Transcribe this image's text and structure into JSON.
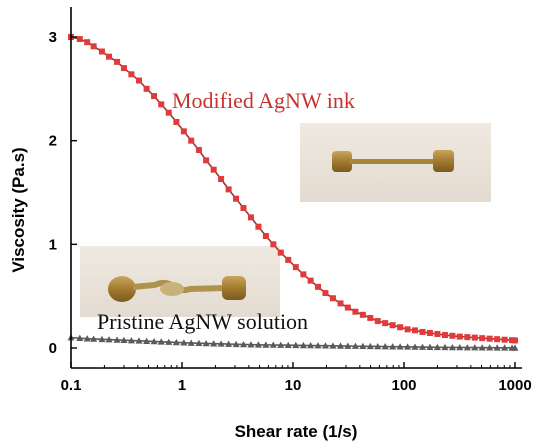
{
  "chart_data": {
    "type": "line",
    "xscale": "log",
    "xlim": [
      0.1,
      1000
    ],
    "ylim": [
      -0.2,
      3.3
    ],
    "xlabel": "Shear rate (1/s)",
    "ylabel": "Viscosity (Pa.s)",
    "xticks": [
      {
        "value": 0.1,
        "label": "0.1"
      },
      {
        "value": 1,
        "label": "1"
      },
      {
        "value": 10,
        "label": "10"
      },
      {
        "value": 100,
        "label": "100"
      },
      {
        "value": 1000,
        "label": "1000"
      }
    ],
    "yticks": [
      {
        "value": 0,
        "label": "0"
      },
      {
        "value": 1,
        "label": "1"
      },
      {
        "value": 2,
        "label": "2"
      },
      {
        "value": 3,
        "label": "3"
      }
    ],
    "grid": false,
    "series": [
      {
        "name": "Modified AgNW ink",
        "color": "#e03a3a",
        "line_color": "#8b3a3a",
        "marker": "square",
        "x": [
          0.1,
          0.12,
          0.14,
          0.16,
          0.19,
          0.22,
          0.26,
          0.3,
          0.35,
          0.41,
          0.48,
          0.56,
          0.65,
          0.76,
          0.89,
          1.04,
          1.21,
          1.42,
          1.65,
          1.93,
          2.25,
          2.63,
          3.07,
          3.58,
          4.18,
          4.88,
          5.7,
          6.65,
          7.76,
          9.06,
          10.6,
          12.4,
          14.4,
          16.8,
          19.6,
          22.9,
          26.8,
          31.2,
          36.5,
          42.6,
          49.7,
          58.0,
          67.7,
          79.0,
          92.3,
          107.7,
          125.7,
          146.8,
          171.3,
          200,
          234,
          273,
          318,
          372,
          434,
          506,
          591,
          690,
          806,
          940,
          1000
        ],
        "y": [
          3.0,
          2.98,
          2.95,
          2.91,
          2.86,
          2.81,
          2.76,
          2.7,
          2.64,
          2.58,
          2.5,
          2.43,
          2.35,
          2.27,
          2.18,
          2.09,
          2.0,
          1.91,
          1.81,
          1.72,
          1.63,
          1.53,
          1.44,
          1.35,
          1.26,
          1.17,
          1.08,
          1.0,
          0.92,
          0.85,
          0.78,
          0.71,
          0.65,
          0.59,
          0.53,
          0.48,
          0.43,
          0.39,
          0.35,
          0.32,
          0.29,
          0.26,
          0.24,
          0.22,
          0.2,
          0.18,
          0.17,
          0.155,
          0.145,
          0.135,
          0.125,
          0.118,
          0.11,
          0.105,
          0.1,
          0.095,
          0.09,
          0.085,
          0.08,
          0.075,
          0.073
        ]
      },
      {
        "name": "Pristine AgNW solution",
        "color": "#5a5a5a",
        "line_color": "#5a5a5a",
        "marker": "triangle",
        "x": [
          0.1,
          0.12,
          0.14,
          0.16,
          0.19,
          0.22,
          0.26,
          0.3,
          0.35,
          0.41,
          0.48,
          0.56,
          0.65,
          0.76,
          0.89,
          1.04,
          1.21,
          1.42,
          1.65,
          1.93,
          2.25,
          2.63,
          3.07,
          3.58,
          4.18,
          4.88,
          5.7,
          6.65,
          7.76,
          9.06,
          10.6,
          12.4,
          14.4,
          16.8,
          19.6,
          22.9,
          26.8,
          31.2,
          36.5,
          42.6,
          49.7,
          58.0,
          67.7,
          79.0,
          92.3,
          107.7,
          125.7,
          146.8,
          171.3,
          200,
          234,
          273,
          318,
          372,
          434,
          506,
          591,
          690,
          806,
          940,
          1000
        ],
        "y": [
          0.1,
          0.095,
          0.09,
          0.087,
          0.084,
          0.081,
          0.078,
          0.075,
          0.072,
          0.069,
          0.066,
          0.063,
          0.06,
          0.057,
          0.054,
          0.051,
          0.048,
          0.046,
          0.044,
          0.042,
          0.04,
          0.038,
          0.036,
          0.034,
          0.032,
          0.031,
          0.03,
          0.029,
          0.028,
          0.027,
          0.026,
          0.025,
          0.024,
          0.023,
          0.022,
          0.021,
          0.02,
          0.019,
          0.018,
          0.017,
          0.016,
          0.015,
          0.014,
          0.013,
          0.012,
          0.011,
          0.01,
          0.009,
          0.008,
          0.007,
          0.006,
          0.005,
          0.005,
          0.004,
          0.004,
          0.003,
          0.003,
          0.002,
          0.002,
          0.001,
          0.001
        ]
      }
    ],
    "annotations": [
      {
        "text": "Modified AgNW ink",
        "color": "#c8322e"
      },
      {
        "text": "Pristine AgNW solution",
        "color": "#111111"
      }
    ]
  }
}
